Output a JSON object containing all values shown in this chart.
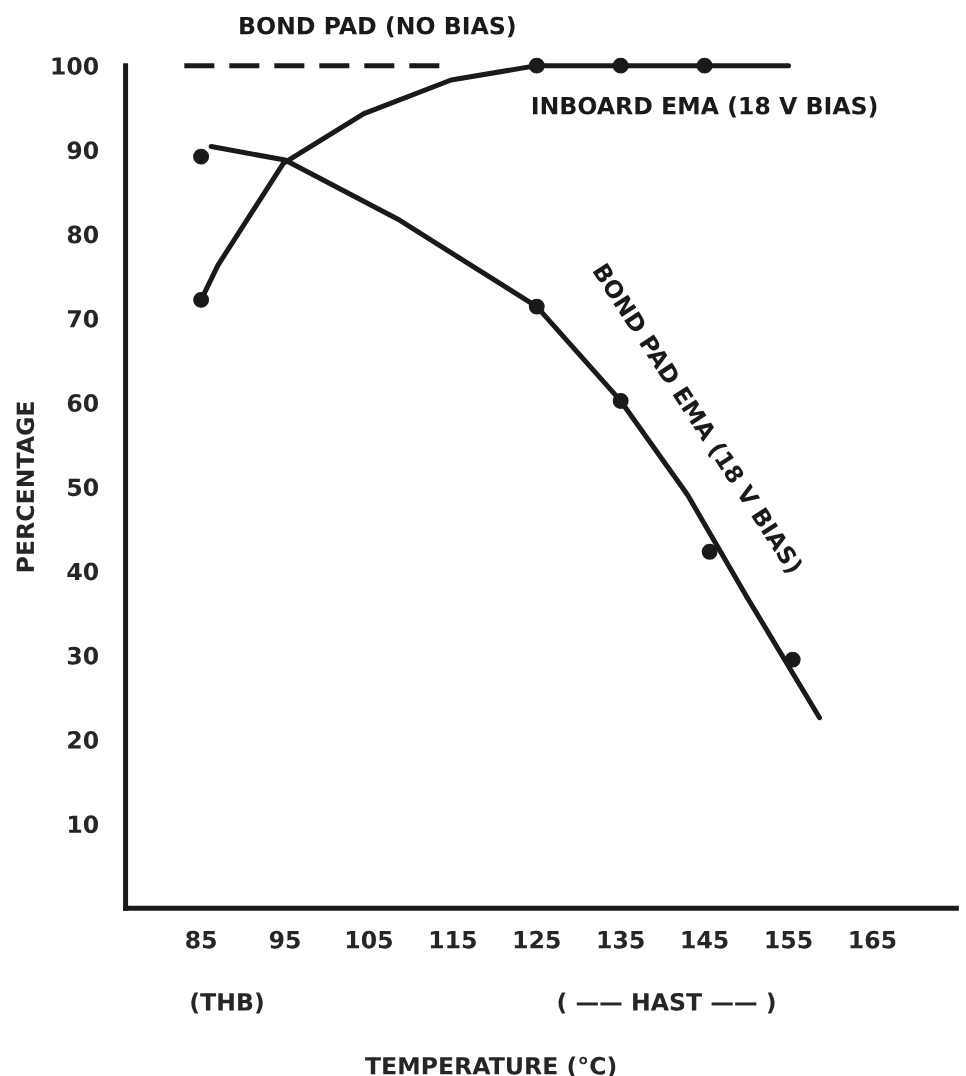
{
  "chart_data": {
    "type": "line",
    "xlabel": "TEMPERATURE (°C)",
    "ylabel": "PERCENTAGE",
    "xlim": [
      76,
      175
    ],
    "ylim": [
      0,
      100
    ],
    "xticks": [
      85,
      95,
      105,
      115,
      125,
      135,
      145,
      155,
      165
    ],
    "yticks": [
      10,
      20,
      30,
      40,
      50,
      60,
      70,
      80,
      90,
      100
    ],
    "grid": false,
    "legend": false,
    "series": [
      {
        "name": "BOND PAD (NO BIAS)",
        "line_style": "dashed",
        "marker": "none",
        "color": "#1a1a1a",
        "x": [
          83,
          115
        ],
        "values": [
          100,
          100
        ]
      },
      {
        "name": "INBOARD EMA (18 V BIAS)",
        "line_style": "solid",
        "marker": "none",
        "color": "#1a1a1a",
        "x": [
          85,
          87,
          94.8,
          104.4,
          114.8,
          125,
          135,
          145,
          155
        ],
        "values": [
          72.2,
          76.3,
          88.4,
          94.3,
          98.3,
          100,
          100,
          100,
          100
        ]
      },
      {
        "type": "scatter",
        "marker": "circle",
        "color": "#1a1a1a",
        "x": [
          85,
          125,
          135,
          145
        ],
        "values": [
          72.2,
          100,
          100,
          100
        ]
      },
      {
        "name": "BOND PAD EMA (18 V BIAS)",
        "line_style": "solid",
        "marker": "none",
        "color": "#1a1a1a",
        "x": [
          86.2,
          95,
          108.4,
          125,
          135,
          143,
          150,
          158.7
        ],
        "values": [
          90.4,
          88.8,
          81.8,
          71.4,
          60.2,
          49,
          37,
          22.6
        ]
      },
      {
        "type": "scatter",
        "marker": "circle",
        "color": "#1a1a1a",
        "x": [
          85,
          125,
          135,
          145.6,
          155.5
        ],
        "values": [
          89.2,
          71.4,
          60.2,
          42.3,
          29.5
        ]
      }
    ],
    "annotations": [
      "(THB)",
      "( —— HAST —— )"
    ]
  }
}
